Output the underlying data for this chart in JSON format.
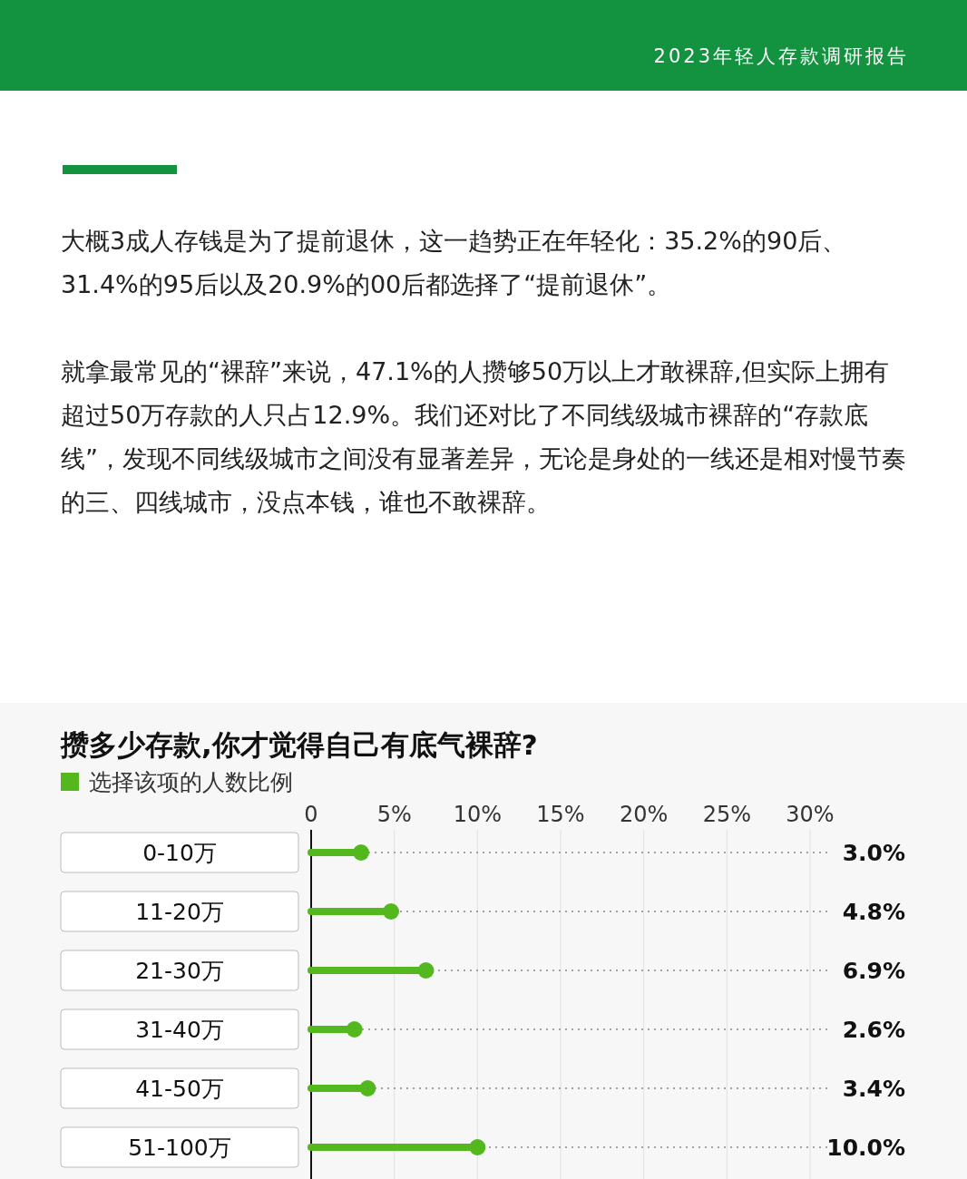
{
  "chart_data": {
    "type": "lollipop",
    "orientation": "horizontal",
    "title": "攒多少存款,你才觉得自己有底气裸辞?",
    "annotations": [
      "2023年轻人存款调研报告",
      "大概3成人存钱是为了提前退休，这一趋势正在年轻化：35.2%的90后、31.4%的95后以及20.9%的00后都选择了“提前退休”。",
      "就拿最常见的“裸辞”来说，47.1%的人攒够50万以上才敢裸辞,但实际上拥有超过50万存款的人只占12.9%。我们还对比了不同线级城市裸辞的“存款底线”，发现不同线级城市之间没有显著差异，无论是身处的一线还是相对慢节奏的三、四线城市，没点本钱，谁也不敢裸辞。"
    ],
    "categories": [
      "0-10万",
      "11-20万",
      "21-30万",
      "31-40万",
      "41-50万",
      "51-100万"
    ],
    "series": [
      {
        "name": "选择该项的人数比例",
        "color": "#52b81e",
        "values": [
          3.0,
          4.8,
          6.9,
          2.6,
          3.4,
          10.0
        ],
        "value_labels": [
          "3.0%",
          "4.8%",
          "6.9%",
          "2.6%",
          "3.4%",
          "10.0%"
        ]
      }
    ],
    "xlim": [
      0,
      31.2
    ],
    "xticks": [
      0,
      {
        "value": 5,
        "label": "5%"
      },
      {
        "value": 10,
        "label": "10%"
      },
      {
        "value": 15,
        "label": "15%"
      },
      {
        "value": 20,
        "label": "20%"
      },
      {
        "value": 25,
        "label": "25%"
      },
      {
        "value": 30,
        "label": "30%"
      }
    ],
    "grid": "x",
    "legend": "top left",
    "marker": "circle"
  }
}
